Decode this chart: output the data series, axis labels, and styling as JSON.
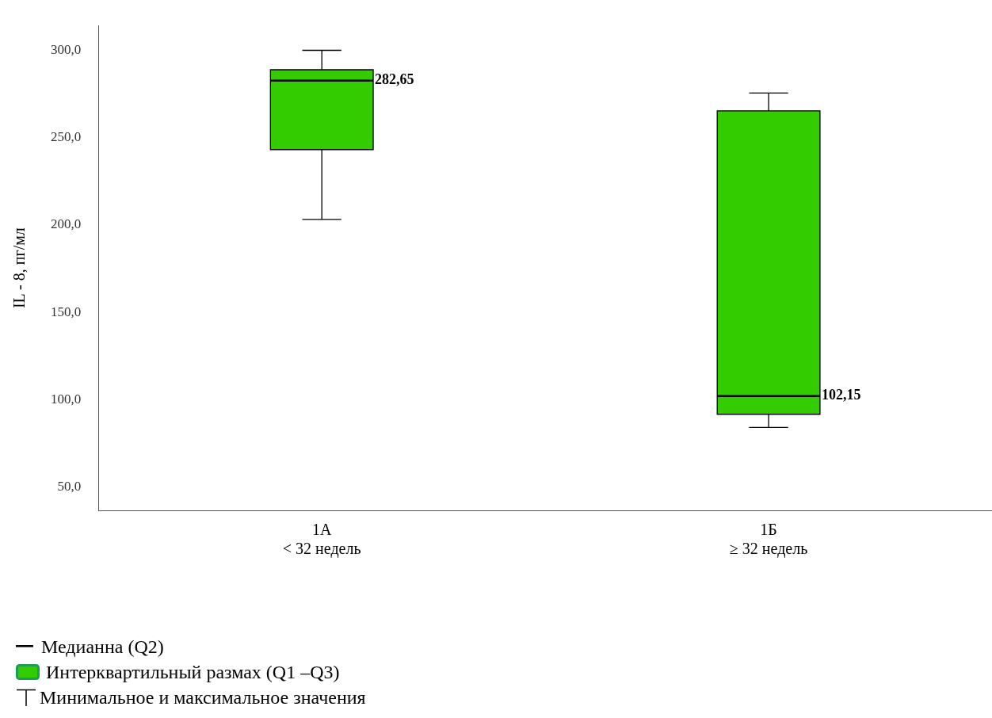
{
  "chart_data": {
    "type": "box",
    "ylabel": "IL - 8, пг/мл",
    "categories": [
      "1А\n< 32 недель",
      "1Б\n≥ 32 недель"
    ],
    "series": [
      {
        "color": "#33cc00",
        "value_labels": [
          "282,65",
          "102,15"
        ],
        "boxes": [
          {
            "low": 203.2,
            "q1": 243.2,
            "median": 282.65,
            "q3": 288.9,
            "high": 300
          },
          {
            "low": 84.2,
            "q1": 91.7,
            "median": 102.15,
            "q3": 265.4,
            "high": 275.6
          }
        ]
      }
    ],
    "ylim": [
      36.7,
      314.2
    ],
    "yticks": [
      {
        "value": 50,
        "label": "50,0"
      },
      {
        "value": 100,
        "label": "100,0"
      },
      {
        "value": 150,
        "label": "150,0"
      },
      {
        "value": 200,
        "label": "200,0"
      },
      {
        "value": 250,
        "label": "250,0"
      },
      {
        "value": 300,
        "label": "300,0"
      }
    ],
    "grid": false,
    "annotations": [
      "Медианна (Q2)",
      "Интерквартильный размах (Q1 –Q3)",
      "Минимальное и максимальное значения"
    ]
  }
}
